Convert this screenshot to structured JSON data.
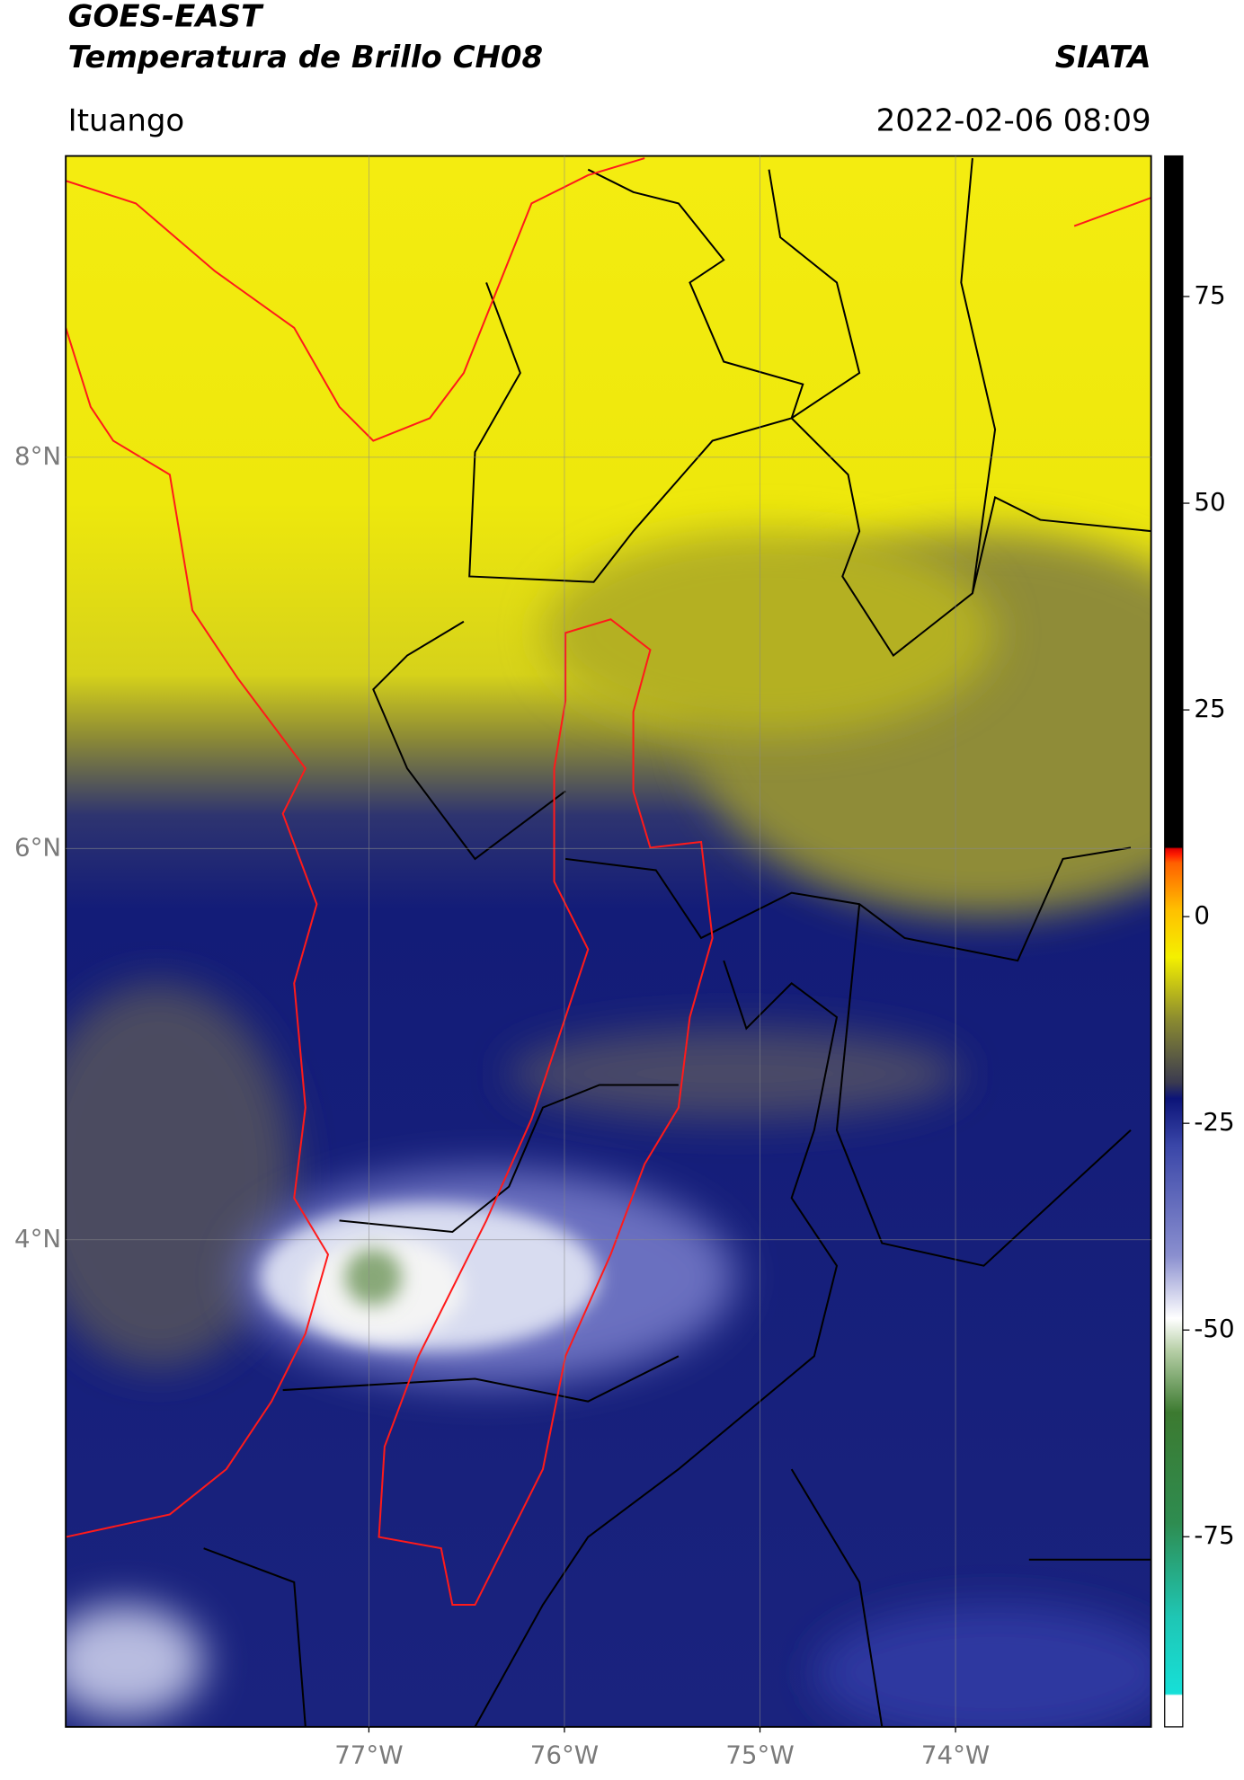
{
  "header": {
    "title_line1": "GOES-EAST",
    "title_line2": "Temperatura de Brillo CH08",
    "source": "SIATA",
    "location": "Ituango",
    "datetime": "2022-02-06 08:09"
  },
  "map": {
    "xlim": [
      -78.55,
      -73.0
    ],
    "ylim": [
      1.51,
      9.54
    ],
    "xticks": [
      {
        "value": -77,
        "label": "77°W"
      },
      {
        "value": -76,
        "label": "76°W"
      },
      {
        "value": -75,
        "label": "75°W"
      },
      {
        "value": -74,
        "label": "74°W"
      }
    ],
    "yticks": [
      {
        "value": 8,
        "label": "8°N"
      },
      {
        "value": 6,
        "label": "6°N"
      },
      {
        "value": 4,
        "label": "4°N"
      }
    ],
    "grid": true
  },
  "colorbar": {
    "lim": [
      -98,
      92
    ],
    "ticks": [
      75,
      50,
      25,
      0,
      -25,
      -50,
      -75
    ]
  }
}
